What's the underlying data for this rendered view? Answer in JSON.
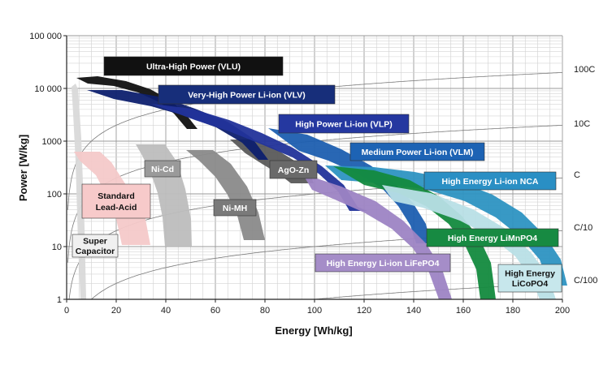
{
  "chart_data": {
    "type": "area",
    "xlabel": "Energy [Wh/kg]",
    "ylabel": "Power [W/kg]",
    "xlim": [
      0,
      200
    ],
    "ylim": [
      1,
      100000
    ],
    "yscale": "log",
    "x_ticks": [
      "0",
      "20",
      "40",
      "60",
      "80",
      "100",
      "120",
      "140",
      "160",
      "180",
      "200"
    ],
    "y_ticks": [
      "1",
      "10",
      "100",
      "1000",
      "10 000",
      "100 000"
    ],
    "grid": true,
    "c_rate_lines": [
      {
        "label": "100C",
        "rate": 100
      },
      {
        "label": "10C",
        "rate": 10
      },
      {
        "label": "C",
        "rate": 1
      },
      {
        "label": "C/10",
        "rate": 0.1
      },
      {
        "label": "C/100",
        "rate": 0.01
      }
    ],
    "series": [
      {
        "name": "Super Capacitor",
        "color": "#d9d9d9",
        "text_color": "#111111",
        "label_box": "#f0f0f0",
        "energy_range": [
          2,
          8
        ],
        "power_range": [
          1,
          12000
        ]
      },
      {
        "name": "Standard Lead-Acid",
        "color": "#f4c9c9",
        "text_color": "#111111",
        "label_box": "#f7caca",
        "energy_range": [
          3,
          35
        ],
        "power_range": [
          10,
          600
        ]
      },
      {
        "name": "Ni-Cd",
        "color": "#bdbdbd",
        "text_color": "#ffffff",
        "label_box": "#9a9a9a",
        "energy_range": [
          28,
          50
        ],
        "power_range": [
          10,
          800
        ]
      },
      {
        "name": "Ni-MH",
        "color": "#8a8a8a",
        "text_color": "#ffffff",
        "label_box": "#7a7a7a",
        "energy_range": [
          48,
          80
        ],
        "power_range": [
          10,
          600
        ]
      },
      {
        "name": "AgO-Zn",
        "color": "#5a5a5a",
        "text_color": "#ffffff",
        "label_box": "#6a6a6a",
        "energy_range": [
          65,
          100
        ],
        "power_range": [
          150,
          1000
        ]
      },
      {
        "name": "Ultra-High Power (VLU)",
        "color": "#111111",
        "text_color": "#ffffff",
        "label_box": "#111111",
        "energy_range": [
          4,
          52
        ],
        "power_range": [
          1500,
          15000
        ]
      },
      {
        "name": "Very-High Power Li-ion (VLV)",
        "color": "#0d1f6e",
        "text_color": "#ffffff",
        "label_box": "#172e7a",
        "energy_range": [
          8,
          85
        ],
        "power_range": [
          400,
          9000
        ]
      },
      {
        "name": "High Power Li-ion (VLP)",
        "color": "#22339a",
        "text_color": "#ffffff",
        "label_box": "#2538a0",
        "energy_range": [
          20,
          122
        ],
        "power_range": [
          50,
          5000
        ]
      },
      {
        "name": "Medium Power Li-ion (VLM)",
        "color": "#1d5fb0",
        "text_color": "#ffffff",
        "label_box": "#1d63b4",
        "energy_range": [
          60,
          148
        ],
        "power_range": [
          12,
          1500
        ]
      },
      {
        "name": "High Energy Li-ion NCA",
        "color": "#2d94c2",
        "text_color": "#ffffff",
        "label_box": "#2a8fc4",
        "energy_range": [
          95,
          190
        ],
        "power_range": [
          5,
          450
        ]
      },
      {
        "name": "High Energy LiMnPO4",
        "color": "#138a3e",
        "text_color": "#ffffff",
        "label_box": "#178a42",
        "energy_range": [
          100,
          175
        ],
        "power_range": [
          1,
          250
        ]
      },
      {
        "name": "High Energy Li-ion LiFePO4",
        "color": "#9d84c4",
        "text_color": "#ffffff",
        "label_box": "#a58dc8",
        "energy_range": [
          95,
          160
        ],
        "power_range": [
          1,
          200
        ]
      },
      {
        "name": "High Energy LiCoPO4",
        "color": "#b8dfe6",
        "text_color": "#111111",
        "label_box": "#c7e7ec",
        "energy_range": [
          110,
          197
        ],
        "power_range": [
          1,
          200
        ]
      }
    ]
  }
}
